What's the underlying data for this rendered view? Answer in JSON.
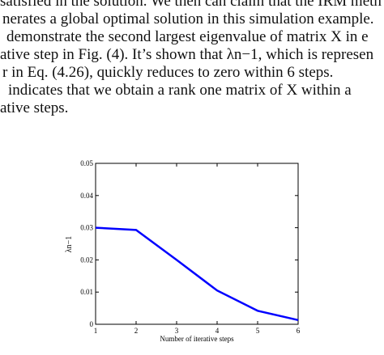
{
  "text_lines": [
    "satisfied in the solution. We then can claim that the IRM meth",
    "nerates a global optimal solution in this simulation example.",
    "demonstrate the second largest eigenvalue of matrix X in e",
    "ative step in Fig. (4). It’s shown that λn−1, which is represen",
    "r in Eq. (4.26), quickly reduces to zero within 6 steps.",
    "indicates that we obtain a rank one matrix of X within a",
    "ative steps."
  ],
  "chart_data": {
    "type": "line",
    "x_label": "Number of iterative steps",
    "y_label": "λn−1",
    "x": [
      1,
      2,
      3,
      4,
      5,
      6
    ],
    "values": [
      0.03,
      0.0293,
      0.02,
      0.0105,
      0.0042,
      0.0013
    ],
    "color": "#0000ff",
    "xlim": [
      1,
      6
    ],
    "xticks": [
      1,
      2,
      3,
      4,
      5,
      6
    ],
    "ylim": [
      0,
      0.05
    ],
    "yticks": [
      0,
      0.01,
      0.02,
      0.03,
      0.04,
      0.05
    ]
  }
}
